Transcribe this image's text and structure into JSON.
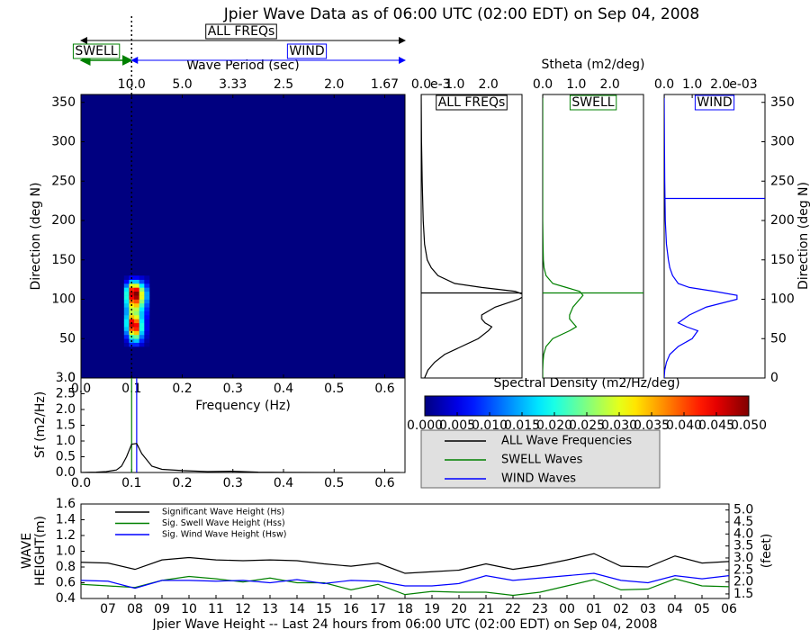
{
  "title": "Jpier Wave Data as of 06:00 UTC (02:00 EDT) on Sep 04, 2008",
  "stheta_label": "Stheta (m2/deg)",
  "legend": [
    {
      "name": "ALL Wave Frequencies",
      "color": "#000000"
    },
    {
      "name": "SWELL Waves",
      "color": "#008000"
    },
    {
      "name": "WIND Waves",
      "color": "#0000ff"
    }
  ],
  "chart_data": [
    {
      "type": "heatmap",
      "colormap": "jet",
      "x_edges": [
        0.085,
        0.095,
        0.105,
        0.115,
        0.125,
        0.135
      ],
      "y_edges": [
        40,
        45,
        50,
        55,
        60,
        65,
        70,
        75,
        80,
        85,
        90,
        95,
        100,
        105,
        110,
        115,
        120,
        125,
        130
      ],
      "z": [
        [
          0.002,
          0.008,
          0.008,
          0.004,
          0.001
        ],
        [
          0.004,
          0.014,
          0.016,
          0.008,
          0.002
        ],
        [
          0.008,
          0.022,
          0.024,
          0.012,
          0.003
        ],
        [
          0.012,
          0.03,
          0.034,
          0.016,
          0.004
        ],
        [
          0.016,
          0.04,
          0.042,
          0.02,
          0.005
        ],
        [
          0.018,
          0.046,
          0.044,
          0.02,
          0.005
        ],
        [
          0.018,
          0.044,
          0.038,
          0.018,
          0.005
        ],
        [
          0.016,
          0.034,
          0.03,
          0.016,
          0.006
        ],
        [
          0.014,
          0.028,
          0.026,
          0.016,
          0.007
        ],
        [
          0.014,
          0.028,
          0.028,
          0.018,
          0.008
        ],
        [
          0.016,
          0.032,
          0.034,
          0.022,
          0.01
        ],
        [
          0.018,
          0.038,
          0.04,
          0.026,
          0.012
        ],
        [
          0.02,
          0.044,
          0.048,
          0.03,
          0.014
        ],
        [
          0.02,
          0.046,
          0.05,
          0.03,
          0.014
        ],
        [
          0.018,
          0.042,
          0.044,
          0.026,
          0.012
        ],
        [
          0.012,
          0.03,
          0.03,
          0.018,
          0.008
        ],
        [
          0.006,
          0.016,
          0.016,
          0.01,
          0.004
        ],
        [
          0.002,
          0.006,
          0.006,
          0.004,
          0.002
        ]
      ],
      "zlim": [
        0,
        0.05
      ],
      "xlim": [
        0,
        0.64
      ],
      "ylim": [
        0,
        360
      ],
      "xticks": [
        {
          "value": 0,
          "label": "0.0"
        },
        {
          "value": 0.1,
          "label": "0.1"
        },
        {
          "value": 0.2,
          "label": "0.2"
        },
        {
          "value": 0.3,
          "label": "0.3"
        },
        {
          "value": 0.4,
          "label": "0.4"
        },
        {
          "value": 0.5,
          "label": "0.5"
        },
        {
          "value": 0.6,
          "label": "0.6"
        }
      ],
      "yticks": [
        0,
        50,
        100,
        150,
        200,
        250,
        300,
        350
      ],
      "y_label": "Direction (deg N)",
      "top_axis_label": "Wave Period (sec)",
      "top_ticks": [
        {
          "value": 0.1,
          "label": "10.0"
        },
        {
          "value": 0.2,
          "label": "5.0"
        },
        {
          "value": 0.3,
          "label": "3.33"
        },
        {
          "value": 0.4,
          "label": "2.5"
        },
        {
          "value": 0.5,
          "label": "2.0"
        },
        {
          "value": 0.6,
          "label": "1.67"
        }
      ],
      "separation_frequency": 0.1,
      "band_labels": {
        "all": "ALL FREQs",
        "swell": "SWELL",
        "wind": "WIND"
      },
      "colorbar": {
        "label": "Spectral Density (m2/Hz/deg)",
        "ticks": [
          {
            "value": 0,
            "label": "0.000"
          },
          {
            "value": 0.005,
            "label": "0.005"
          },
          {
            "value": 0.01,
            "label": "0.010"
          },
          {
            "value": 0.015,
            "label": "0.015"
          },
          {
            "value": 0.02,
            "label": "0.020"
          },
          {
            "value": 0.025,
            "label": "0.025"
          },
          {
            "value": 0.03,
            "label": "0.030"
          },
          {
            "value": 0.035,
            "label": "0.035"
          },
          {
            "value": 0.04,
            "label": "0.040"
          },
          {
            "value": 0.045,
            "label": "0.045"
          },
          {
            "value": 0.05,
            "label": "0.050"
          }
        ]
      }
    },
    {
      "type": "line",
      "color": "#000000",
      "x": [
        0,
        0.03,
        0.05,
        0.07,
        0.08,
        0.09,
        0.1,
        0.11,
        0.12,
        0.14,
        0.16,
        0.2,
        0.25,
        0.3,
        0.35,
        0.4,
        0.5,
        0.63
      ],
      "values": [
        0,
        0.01,
        0.03,
        0.08,
        0.2,
        0.5,
        0.9,
        0.92,
        0.6,
        0.2,
        0.1,
        0.06,
        0.03,
        0.04,
        0.01,
        0.005,
        0,
        0
      ],
      "xlim": [
        0,
        0.64
      ],
      "ylim": [
        0,
        3
      ],
      "xticks": [
        {
          "value": 0,
          "label": "0.0"
        },
        {
          "value": 0.1,
          "label": "0.1"
        },
        {
          "value": 0.2,
          "label": "0.2"
        },
        {
          "value": 0.3,
          "label": "0.3"
        },
        {
          "value": 0.4,
          "label": "0.4"
        },
        {
          "value": 0.5,
          "label": "0.5"
        },
        {
          "value": 0.6,
          "label": "0.6"
        }
      ],
      "yticks": [
        {
          "value": 0,
          "label": "0.0"
        },
        {
          "value": 0.5,
          "label": "0.5"
        },
        {
          "value": 1,
          "label": "1.0"
        },
        {
          "value": 1.5,
          "label": "1.5"
        },
        {
          "value": 2,
          "label": "2.0"
        },
        {
          "value": 2.5,
          "label": "2.5"
        },
        {
          "value": 3,
          "label": "3.0"
        }
      ],
      "x_label": "Frequency (Hz)",
      "y_label": "Sf (m2/Hz)",
      "markers": [
        {
          "x": 0.1,
          "color": "#008000"
        },
        {
          "x": 0.11,
          "color": "#0000ff"
        }
      ]
    },
    {
      "type": "profile",
      "label": "ALL FREQs",
      "color": "#000000",
      "y": [
        0,
        10,
        20,
        30,
        40,
        50,
        60,
        65,
        70,
        75,
        80,
        90,
        100,
        105,
        110,
        115,
        120,
        130,
        140,
        150,
        170,
        200,
        250,
        300,
        360
      ],
      "values": [
        0.0001,
        0.0002,
        0.0004,
        0.0007,
        0.0012,
        0.0017,
        0.002,
        0.0021,
        0.0019,
        0.0018,
        0.0018,
        0.0022,
        0.0029,
        0.0031,
        0.0028,
        0.0018,
        0.001,
        0.0005,
        0.0003,
        0.00018,
        0.0001,
        6e-05,
        3e-05,
        1e-05,
        0
      ],
      "xlim": [
        0,
        0.003
      ],
      "ylim": [
        0,
        360
      ],
      "xticks": [
        {
          "value": 0,
          "label": "0.0"
        },
        {
          "value": 0.001,
          "label": "1.0"
        },
        {
          "value": 0.002,
          "label": "2.0"
        }
      ],
      "offset_label": "e-3",
      "hline": 108
    },
    {
      "type": "profile",
      "label": "SWELL",
      "color": "#008000",
      "y": [
        0,
        10,
        20,
        30,
        40,
        50,
        60,
        65,
        70,
        75,
        80,
        90,
        100,
        105,
        110,
        115,
        120,
        130,
        140,
        150,
        170,
        200,
        250,
        300,
        360
      ],
      "values": [
        0,
        0,
        1e-05,
        3e-05,
        0.0001,
        0.0003,
        0.0008,
        0.001,
        0.0009,
        0.0008,
        0.0008,
        0.0009,
        0.0011,
        0.0012,
        0.0011,
        0.0007,
        0.0003,
        0.0001,
        4e-05,
        2e-05,
        1e-05,
        0,
        0,
        0,
        0
      ],
      "xlim": [
        0,
        0.003
      ],
      "ylim": [
        0,
        360
      ],
      "xticks": [
        {
          "value": 0,
          "label": "0.0"
        },
        {
          "value": 0.001,
          "label": "1.0"
        },
        {
          "value": 0.002,
          "label": "2.0"
        }
      ],
      "hline": 108
    },
    {
      "type": "profile",
      "label": "WIND",
      "color": "#0000ff",
      "y": [
        0,
        10,
        20,
        30,
        40,
        50,
        60,
        65,
        70,
        75,
        80,
        90,
        100,
        105,
        110,
        115,
        120,
        130,
        140,
        150,
        170,
        200,
        250,
        300,
        360
      ],
      "values": [
        0,
        2e-05,
        8e-05,
        0.0002,
        0.0005,
        0.001,
        0.0012,
        0.0008,
        0.0005,
        0.0007,
        0.0009,
        0.0015,
        0.0026,
        0.0026,
        0.0018,
        0.0009,
        0.0005,
        0.0003,
        0.0002,
        0.00015,
        8e-05,
        4e-05,
        2e-05,
        1e-05,
        0
      ],
      "xlim": [
        0,
        0.0036
      ],
      "ylim": [
        0,
        360
      ],
      "xticks": [
        {
          "value": 0,
          "label": "0.0"
        },
        {
          "value": 0.001,
          "label": "1.0"
        },
        {
          "value": 0.002,
          "label": "2.0"
        }
      ],
      "offset_label": "e-03",
      "hline": 228,
      "yticks": [
        0,
        50,
        100,
        150,
        200,
        250,
        300,
        350
      ],
      "y_label": "Direction (deg N)"
    },
    {
      "type": "line",
      "legend": "upper left",
      "categories": [
        null,
        "07",
        "08",
        "09",
        "10",
        "11",
        "12",
        "13",
        "14",
        "15",
        "16",
        "17",
        "18",
        "19",
        "20",
        "21",
        "22",
        "23",
        "00",
        "01",
        "02",
        "03",
        "04",
        "05",
        "06"
      ],
      "series": [
        {
          "name": "Significant Wave Height (Hs)",
          "color": "#000000",
          "values": [
            0.86,
            0.85,
            0.77,
            0.89,
            0.92,
            0.89,
            0.88,
            0.89,
            0.88,
            0.84,
            0.81,
            0.85,
            0.72,
            0.74,
            0.76,
            0.84,
            0.77,
            0.82,
            0.89,
            0.97,
            0.81,
            0.8,
            0.94,
            0.85,
            0.87
          ]
        },
        {
          "name": "Sig. Swell Wave Height (Hss)",
          "color": "#008000",
          "values": [
            0.58,
            0.56,
            0.54,
            0.63,
            0.68,
            0.65,
            0.61,
            0.66,
            0.6,
            0.6,
            0.51,
            0.58,
            0.45,
            0.49,
            0.48,
            0.48,
            0.44,
            0.48,
            0.56,
            0.64,
            0.51,
            0.52,
            0.65,
            0.56,
            0.55
          ]
        },
        {
          "name": "Sig. Wind Wave Height (Hsw)",
          "color": "#0000ff",
          "values": [
            0.63,
            0.62,
            0.53,
            0.63,
            0.63,
            0.62,
            0.63,
            0.6,
            0.64,
            0.59,
            0.63,
            0.62,
            0.56,
            0.56,
            0.59,
            0.69,
            0.63,
            0.66,
            0.69,
            0.72,
            0.63,
            0.6,
            0.69,
            0.65,
            0.69
          ]
        }
      ],
      "ylim": [
        0.4,
        1.6
      ],
      "yticks": [
        {
          "value": 0.4,
          "label": "0.4"
        },
        {
          "value": 0.6,
          "label": "0.6"
        },
        {
          "value": 0.8,
          "label": "0.8"
        },
        {
          "value": 1,
          "label": "1.0"
        },
        {
          "value": 1.2,
          "label": "1.2"
        },
        {
          "value": 1.4,
          "label": "1.4"
        },
        {
          "value": 1.6,
          "label": "1.6"
        }
      ],
      "y2lim": [
        1.31,
        5.25
      ],
      "y2ticks": [
        1.5,
        {
          "value": 2,
          "label": "2.0"
        },
        2.5,
        {
          "value": 3,
          "label": "3.0"
        },
        3.5,
        {
          "value": 4,
          "label": "4.0"
        },
        4.5,
        {
          "value": 5,
          "label": "5.0"
        }
      ],
      "y_label": [
        "WAVE",
        "HEIGHT(m)"
      ],
      "y2_label": "(feet)",
      "x_label": "Jpier Wave Height -- Last 24 hours from 06:00 UTC (02:00 EDT) on Sep 04, 2008"
    }
  ]
}
